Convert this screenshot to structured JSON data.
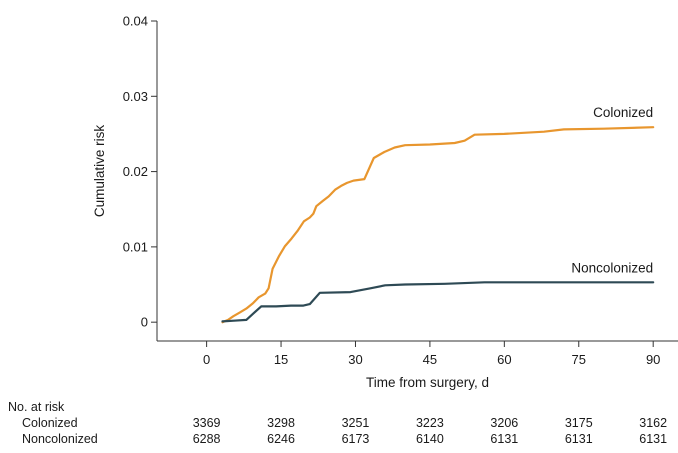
{
  "chart_data": {
    "type": "line",
    "xlabel": "Time from surgery, d",
    "ylabel": "Cumulative risk",
    "xlim": [
      -10,
      95
    ],
    "ylim": [
      -0.0025,
      0.04
    ],
    "x_ticks": [
      0,
      15,
      30,
      45,
      60,
      75,
      90
    ],
    "x_tick_labels": [
      "0",
      "15",
      "30",
      "45",
      "60",
      "75",
      "90"
    ],
    "y_ticks": [
      0,
      0.01,
      0.02,
      0.03,
      0.04
    ],
    "y_tick_labels": [
      "0",
      "0.01",
      "0.02",
      "0.03",
      "0.04"
    ],
    "grid": false,
    "series": [
      {
        "name": "Colonized",
        "color": "#e8962e",
        "points": [
          [
            3.2,
            0
          ],
          [
            4.3,
            0.0003
          ],
          [
            5.4,
            0.0008
          ],
          [
            6.7,
            0.0013
          ],
          [
            8,
            0.0018
          ],
          [
            9.3,
            0.0025
          ],
          [
            10.5,
            0.0033
          ],
          [
            11.8,
            0.0038
          ],
          [
            12.5,
            0.0045
          ],
          [
            13.3,
            0.0071
          ],
          [
            14.6,
            0.0088
          ],
          [
            15.8,
            0.0101
          ],
          [
            17.1,
            0.0111
          ],
          [
            18.3,
            0.0121
          ],
          [
            19.6,
            0.0134
          ],
          [
            20.8,
            0.0139
          ],
          [
            21.5,
            0.0144
          ],
          [
            22.1,
            0.0154
          ],
          [
            23.4,
            0.0161
          ],
          [
            24.6,
            0.0167
          ],
          [
            25.9,
            0.0176
          ],
          [
            27.1,
            0.0181
          ],
          [
            28.3,
            0.0185
          ],
          [
            29.6,
            0.0188
          ],
          [
            31.8,
            0.019
          ],
          [
            33.7,
            0.0218
          ],
          [
            35.8,
            0.0226
          ],
          [
            37.9,
            0.0232
          ],
          [
            40,
            0.0235
          ],
          [
            45,
            0.0236
          ],
          [
            50,
            0.0238
          ],
          [
            52,
            0.0241
          ],
          [
            54,
            0.0249
          ],
          [
            60,
            0.025
          ],
          [
            68,
            0.0253
          ],
          [
            72,
            0.0256
          ],
          [
            80,
            0.0257
          ],
          [
            90,
            0.0259
          ]
        ]
      },
      {
        "name": "Noncolonized",
        "color": "#2e4a55",
        "points": [
          [
            3.2,
            0.0001
          ],
          [
            5.5,
            0.0002
          ],
          [
            8,
            0.0003
          ],
          [
            9.5,
            0.0012
          ],
          [
            11,
            0.0021
          ],
          [
            14,
            0.0021
          ],
          [
            17,
            0.0022
          ],
          [
            19.5,
            0.0022
          ],
          [
            20.8,
            0.0024
          ],
          [
            22.8,
            0.0039
          ],
          [
            29,
            0.004
          ],
          [
            33,
            0.0045
          ],
          [
            36,
            0.0049
          ],
          [
            40,
            0.005
          ],
          [
            48,
            0.0051
          ],
          [
            56,
            0.0053
          ],
          [
            60,
            0.0053
          ],
          [
            75,
            0.0053
          ],
          [
            90,
            0.0053
          ]
        ]
      }
    ]
  },
  "risk_table": {
    "header": "No. at risk",
    "rows": [
      {
        "label": "Colonized",
        "values": [
          "3369",
          "3298",
          "3251",
          "3223",
          "3206",
          "3175",
          "3162"
        ]
      },
      {
        "label": "Noncolonized",
        "values": [
          "6288",
          "6246",
          "6173",
          "6140",
          "6131",
          "6131",
          "6131"
        ]
      }
    ]
  }
}
